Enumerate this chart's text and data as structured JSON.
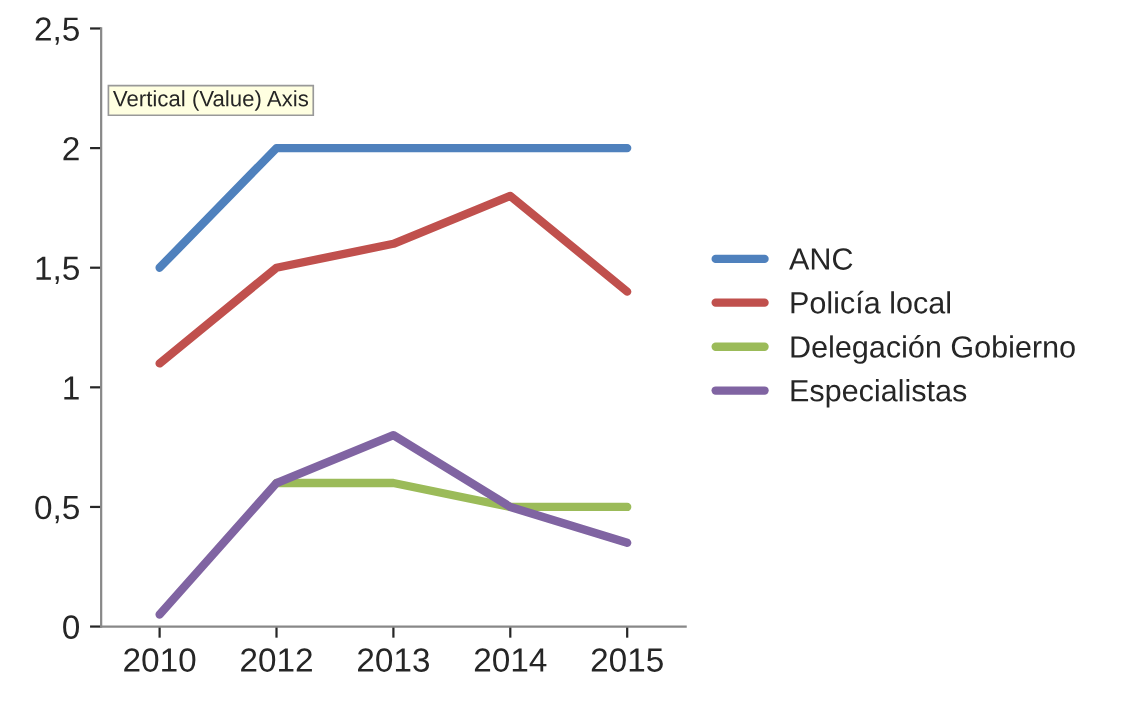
{
  "chart_data": {
    "type": "line",
    "categories": [
      "2010",
      "2012",
      "2013",
      "2014",
      "2015"
    ],
    "series": [
      {
        "name": "ANC",
        "color": "#4f81bd",
        "values": [
          1.5,
          2,
          2,
          2,
          2
        ]
      },
      {
        "name": "Policía local",
        "color": "#c0504d",
        "values": [
          1.1,
          1.5,
          1.6,
          1.8,
          1.4
        ]
      },
      {
        "name": "Delegación Gobierno",
        "color": "#9bbb59",
        "values": [
          null,
          0.6,
          0.6,
          0.5,
          0.5
        ]
      },
      {
        "name": "Especialistas",
        "color": "#8064a2",
        "values": [
          0.05,
          0.6,
          0.8,
          0.5,
          0.35
        ]
      }
    ],
    "ylim": [
      0,
      2.5
    ],
    "yticks": [
      {
        "value": 0,
        "label": "0"
      },
      {
        "value": 0.5,
        "label": "0,5"
      },
      {
        "value": 1,
        "label": "1"
      },
      {
        "value": 1.5,
        "label": "1,5"
      },
      {
        "value": 2,
        "label": "2"
      },
      {
        "value": 2.5,
        "label": "2,5"
      }
    ],
    "annotations": [
      "Vertical (Value) Axis"
    ],
    "grid": false,
    "legend": "right",
    "marker": "none",
    "line_style": "solid"
  }
}
